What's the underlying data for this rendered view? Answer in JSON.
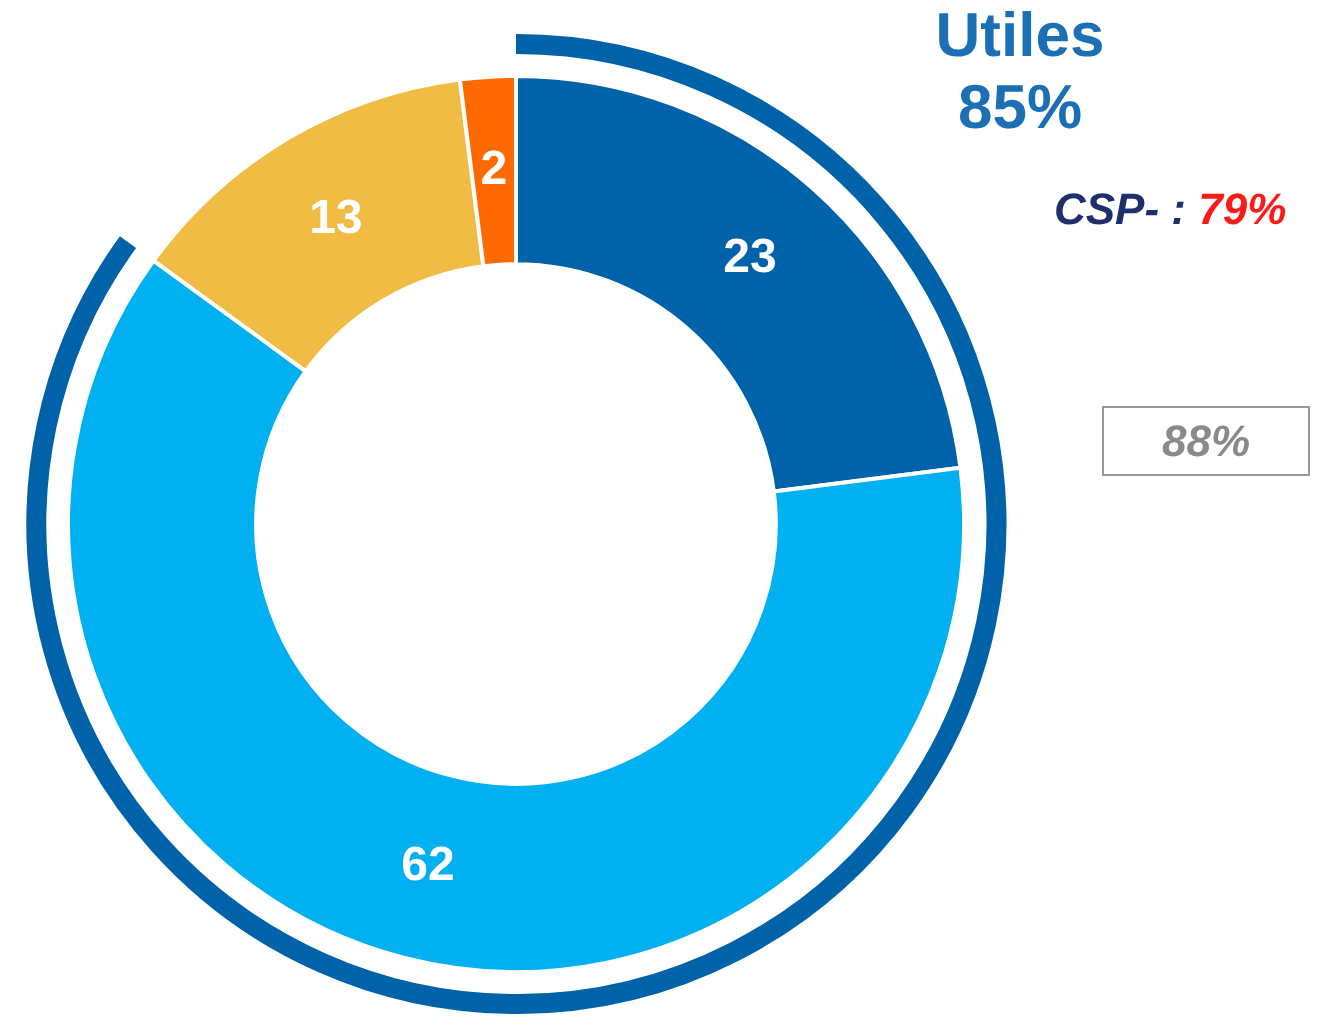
{
  "chart_data": {
    "type": "donut",
    "categories": [
      null,
      null,
      null,
      null
    ],
    "values": [
      23,
      62,
      13,
      2
    ],
    "colors": [
      "#0062a8",
      "#00b0f0",
      "#f0bc44",
      "#ff6a00"
    ],
    "data_labels": true,
    "legend": false,
    "annotations": [
      "Utiles\n85%",
      "CSP- : 79%",
      "88%"
    ]
  }
}
